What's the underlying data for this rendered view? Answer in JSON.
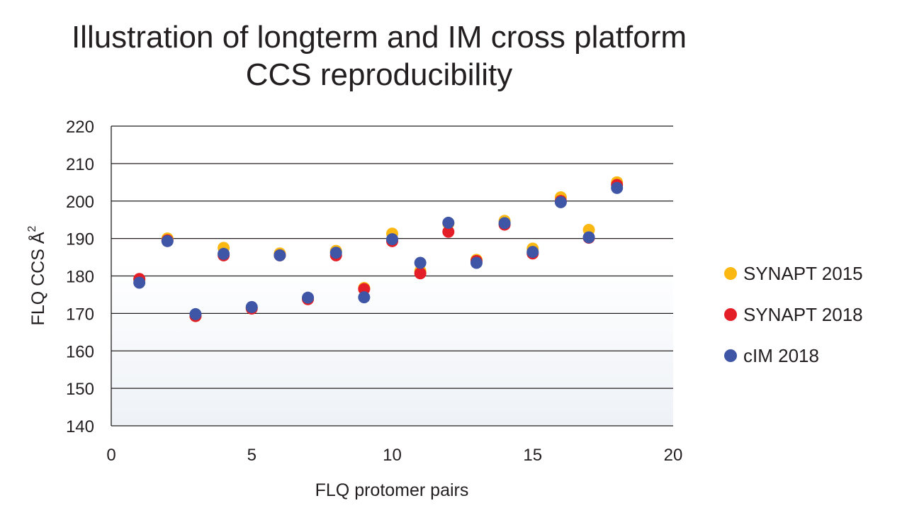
{
  "chart_data": {
    "type": "scatter",
    "title_line1": "Illustration of longterm and IM cross platform",
    "title_line2": "CCS reproducibility",
    "xlabel": "FLQ protomer pairs",
    "ylabel": "FLQ CCS Å",
    "ylabel_sup": "2",
    "xlim": [
      0,
      20
    ],
    "ylim": [
      140,
      220
    ],
    "xticks": [
      0,
      5,
      10,
      15,
      20
    ],
    "yticks": [
      140,
      150,
      160,
      170,
      180,
      190,
      200,
      210,
      220
    ],
    "grid": "horizontal",
    "legend_position": "right",
    "series": [
      {
        "name": "SYNAPT 2015",
        "color": "#fbb813",
        "x": [
          1,
          2,
          3,
          4,
          5,
          6,
          7,
          8,
          9,
          10,
          11,
          12,
          13,
          14,
          15,
          16,
          17,
          18
        ],
        "y": [
          179,
          190,
          169.3,
          187.5,
          171.5,
          186,
          174,
          186.7,
          176.8,
          191.3,
          181.3,
          194,
          184.3,
          194.7,
          187.3,
          201,
          192.3,
          205
        ]
      },
      {
        "name": "SYNAPT 2018",
        "color": "#e41e26",
        "x": [
          1,
          2,
          3,
          4,
          5,
          6,
          7,
          8,
          9,
          10,
          11,
          12,
          13,
          14,
          15,
          16,
          17,
          18
        ],
        "y": [
          179.2,
          189.5,
          169.3,
          185.5,
          171.3,
          185.5,
          173.8,
          185.5,
          176.5,
          189.3,
          180.7,
          191.8,
          184,
          193.7,
          186,
          200,
          190.2,
          204.3
        ]
      },
      {
        "name": "cIM 2018",
        "color": "#3f55a5",
        "x": [
          1,
          2,
          3,
          4,
          5,
          6,
          7,
          8,
          9,
          10,
          11,
          12,
          13,
          14,
          15,
          16,
          17,
          18
        ],
        "y": [
          178.2,
          189.3,
          169.8,
          185.9,
          171.7,
          185.5,
          174.2,
          186.2,
          174.3,
          189.8,
          183.5,
          194.2,
          183.5,
          194.1,
          186.4,
          199.7,
          190.3,
          203.5
        ]
      }
    ]
  }
}
